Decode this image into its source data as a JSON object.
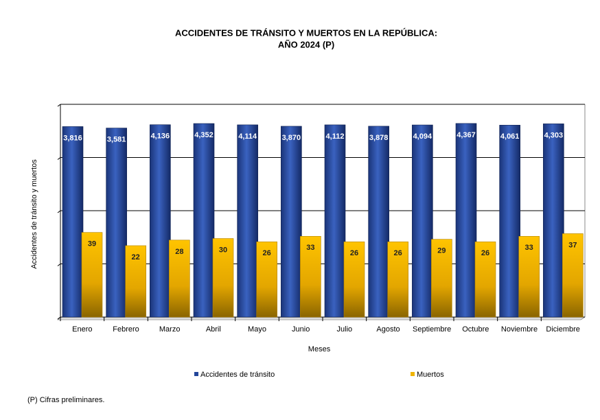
{
  "chart_data": {
    "type": "bar",
    "title": "ACCIDENTES DE TRÁNSITO Y MUERTOS EN LA REPÚBLICA:",
    "subtitle": "AÑO 2024 (P)",
    "x_label": "Meses",
    "y_label": "Accidentes de tránsito y muertos",
    "note": "(P) Cifras  preliminares.",
    "categories": [
      "Enero",
      "Febrero",
      "Marzo",
      "Abril",
      "Mayo",
      "Junio",
      "Julio",
      "Agosto",
      "Septiembre",
      "Octubre",
      "Noviembre",
      "Diciembre"
    ],
    "series": [
      {
        "name": "Accidentes de tránsito",
        "color": "#23469a",
        "values": [
          3816,
          3581,
          4136,
          4352,
          4114,
          3870,
          4112,
          3878,
          4094,
          4367,
          4061,
          4303
        ],
        "value_labels": [
          "3,816",
          "3,581",
          "4,136",
          "4,352",
          "4,114",
          "3,870",
          "4,112",
          "3,878",
          "4,094",
          "4,367",
          "4,061",
          "4,303"
        ]
      },
      {
        "name": "Muertos",
        "color": "#f0b400",
        "values": [
          39,
          22,
          28,
          30,
          26,
          33,
          26,
          26,
          29,
          26,
          33,
          37
        ]
      }
    ],
    "log_scale": true,
    "ylim": [
      1,
      10000
    ],
    "yticks": [
      1,
      10,
      100,
      1000,
      10000
    ],
    "ytick_labels": false,
    "grid": true,
    "legend": "bottom"
  }
}
